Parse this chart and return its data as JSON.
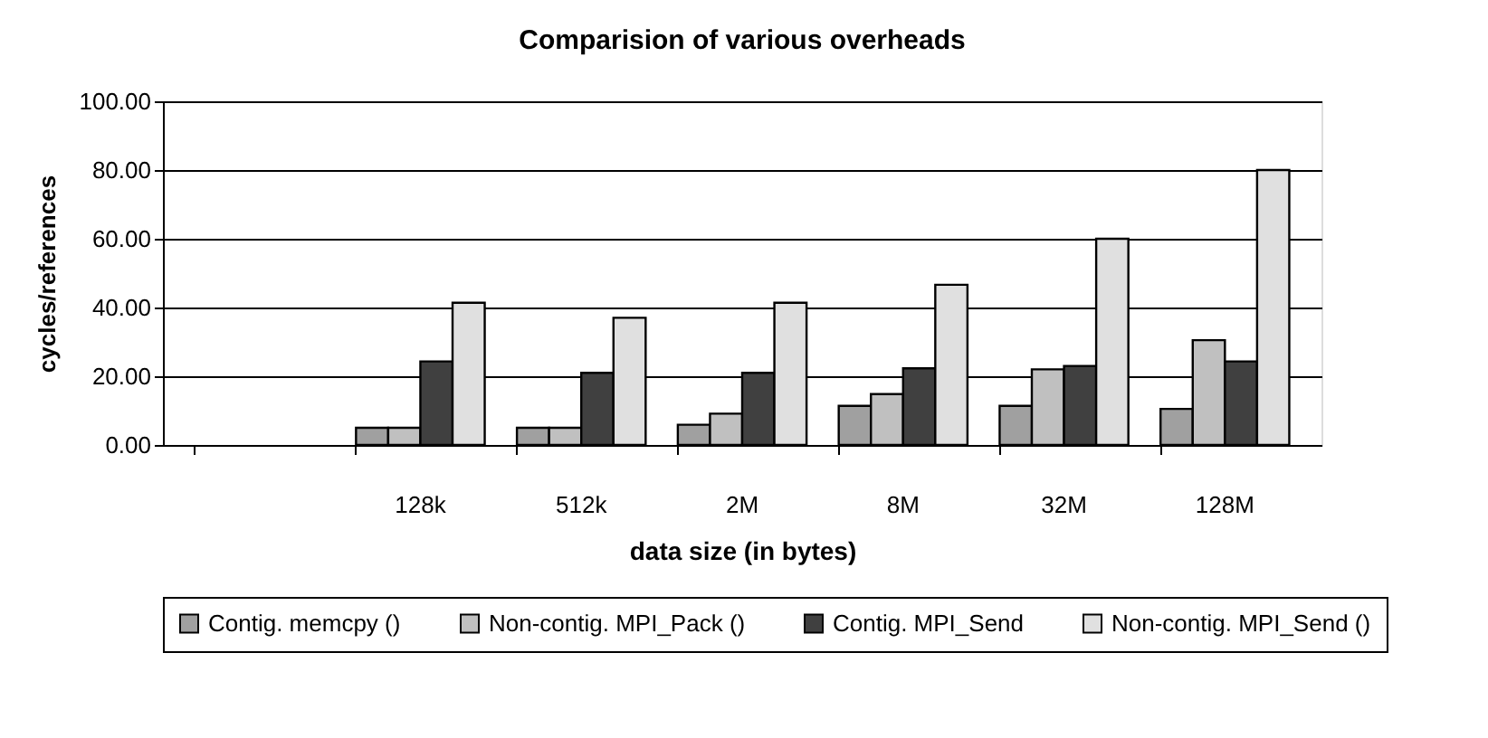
{
  "chart_data": {
    "type": "bar",
    "title": "Comparision of various overheads",
    "xlabel": "data size (in bytes)",
    "ylabel": "cycles/references",
    "categories": [
      null,
      "128k",
      "512k",
      "2M",
      "8M",
      "32M",
      "128M"
    ],
    "series": [
      {
        "name": "Contig. memcpy ()",
        "color": "#a0a0a0",
        "values": [
          null,
          5,
          5,
          5.9,
          11.4,
          11.4,
          10.5
        ]
      },
      {
        "name": "Non-contig. MPI_Pack ()",
        "color": "#c0c0c0",
        "values": [
          null,
          5,
          5,
          9.1,
          14.8,
          22,
          30.5
        ]
      },
      {
        "name": "Contig. MPI_Send",
        "color": "#404040",
        "values": [
          null,
          24.3,
          21,
          21,
          22.3,
          23,
          24.3
        ]
      },
      {
        "name": "Non-contig. MPI_Send ()",
        "color": "#e0e0e0",
        "values": [
          null,
          41.4,
          37,
          41.4,
          46.6,
          60,
          80
        ]
      }
    ],
    "ylim": [
      0,
      100
    ],
    "yticks": [
      {
        "value": 0,
        "label": "0.00"
      },
      {
        "value": 20,
        "label": "20.00"
      },
      {
        "value": 40,
        "label": "40.00"
      },
      {
        "value": 60,
        "label": "60.00"
      },
      {
        "value": 80,
        "label": "80.00"
      },
      {
        "value": 100,
        "label": "100.00"
      }
    ],
    "grid": "y",
    "legend": "bottom"
  }
}
